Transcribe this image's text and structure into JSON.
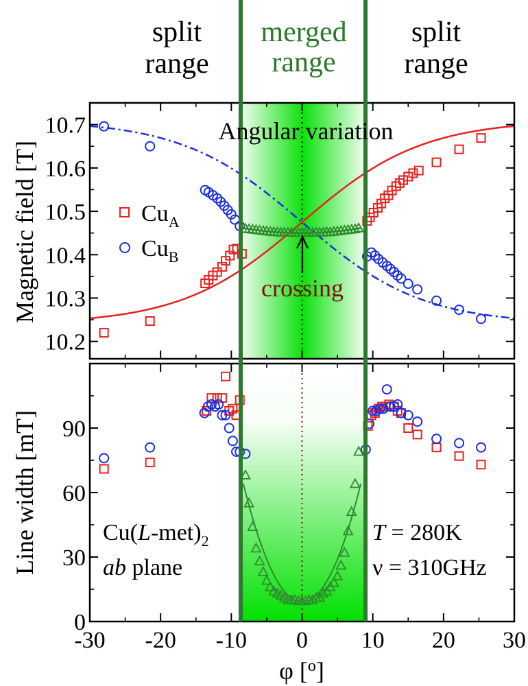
{
  "figure": {
    "range_labels": {
      "left": [
        "split",
        "range"
      ],
      "center": [
        "merged",
        "range"
      ],
      "right": [
        "split",
        "range"
      ]
    },
    "colors": {
      "cuA": "#e8201c",
      "cuB": "#1a2ee0",
      "merged": "#2e8b2e",
      "boundary": "#2d7a2d",
      "crossing": "#7a1010",
      "dotted_top": "#000000",
      "dotted_bottom": "#7a1010"
    }
  },
  "chart_data": [
    {
      "type": "scatter",
      "panel": "top",
      "title": "Angular variation",
      "xlabel": "",
      "ylabel": "Magnetic field [T]",
      "xlim": [
        -30,
        30
      ],
      "ylim": [
        10.16,
        10.75
      ],
      "yticks": [
        10.2,
        10.3,
        10.4,
        10.5,
        10.6,
        10.7
      ],
      "ytick_labels": [
        "10.2",
        "10.3",
        "10.4",
        "10.5",
        "10.6",
        "10.7"
      ],
      "annotation": "crossing",
      "legend": [
        {
          "base": "Cu",
          "sub": "A",
          "marker": "square",
          "color": "#e8201c"
        },
        {
          "base": "Cu",
          "sub": "B",
          "marker": "circle",
          "color": "#1a2ee0"
        }
      ],
      "series": [
        {
          "name": "CuA",
          "marker": "square",
          "color": "#e8201c",
          "x": [
            -28,
            -21.5,
            -13.7,
            -13.2,
            -12.6,
            -12,
            -11.3,
            -10.8,
            -10.2,
            -9.7,
            -9.2,
            -8.5,
            9.2,
            9.6,
            10.1,
            10.7,
            11.2,
            11.7,
            12.2,
            12.7,
            13.3,
            13.8,
            14.3,
            15,
            15.7,
            16.5,
            19,
            22.2,
            25.3
          ],
          "y": [
            10.22,
            10.247,
            10.334,
            10.342,
            10.352,
            10.36,
            10.372,
            10.386,
            10.398,
            10.412,
            10.414,
            10.402,
            10.478,
            10.486,
            10.497,
            10.508,
            10.518,
            10.53,
            10.537,
            10.548,
            10.558,
            10.565,
            10.572,
            10.58,
            10.588,
            10.594,
            10.613,
            10.643,
            10.669
          ]
        },
        {
          "name": "CuB",
          "marker": "circle",
          "color": "#1a2ee0",
          "x": [
            -28,
            -21.5,
            -13.7,
            -13.2,
            -12.6,
            -12,
            -11.5,
            -11,
            -10.5,
            -10,
            -9.5,
            -8.8,
            9.2,
            9.8,
            10.3,
            10.8,
            11.4,
            12,
            12.5,
            13,
            13.5,
            14,
            15,
            16.3,
            19,
            22.2,
            25.3
          ],
          "y": [
            10.696,
            10.65,
            10.549,
            10.544,
            10.537,
            10.53,
            10.522,
            10.513,
            10.503,
            10.493,
            10.481,
            10.466,
            10.396,
            10.405,
            10.398,
            10.39,
            10.382,
            10.374,
            10.367,
            10.36,
            10.352,
            10.345,
            10.333,
            10.32,
            10.294,
            10.273,
            10.252
          ]
        },
        {
          "name": "merged",
          "marker": "triangle",
          "color": "#2e8b2e",
          "x": [
            -8,
            -7.5,
            -7,
            -6.5,
            -6,
            -5.5,
            -5,
            -4.5,
            -4,
            -3.5,
            -3,
            -2.5,
            -2,
            -1.5,
            -1,
            -0.5,
            0,
            0.5,
            1,
            1.5,
            2,
            2.5,
            3,
            3.5,
            4,
            4.5,
            5,
            5.5,
            6,
            6.5,
            7,
            7.5,
            8
          ],
          "y": [
            10.46,
            10.459,
            10.458,
            10.457,
            10.456,
            10.455,
            10.454,
            10.453,
            10.452,
            10.452,
            10.451,
            10.451,
            10.451,
            10.451,
            10.45,
            10.45,
            10.45,
            10.45,
            10.45,
            10.451,
            10.451,
            10.451,
            10.451,
            10.452,
            10.452,
            10.453,
            10.454,
            10.455,
            10.456,
            10.457,
            10.458,
            10.459,
            10.461
          ]
        }
      ],
      "fit_curves": [
        {
          "name": "CuA fit",
          "style": "solid",
          "color": "#e8201c",
          "x_range": [
            -30,
            30
          ],
          "model": "10.475 + 0.235*tanh(phi/17)"
        },
        {
          "name": "CuB fit",
          "style": "dash-dot",
          "color": "#1a2ee0",
          "x_range": [
            -30,
            30
          ],
          "model": "10.475 - 0.235*tanh(phi/17)"
        },
        {
          "name": "merged fit",
          "style": "solid",
          "color": "#2e8b2e",
          "x_range": [
            -8.3,
            8.3
          ],
          "model": "10.450 + 0.15*(phi/30)^2"
        }
      ]
    },
    {
      "type": "scatter",
      "panel": "bottom",
      "title": "",
      "xlabel": "φ [o]",
      "ylabel": "Line width [mT]",
      "xlim": [
        -30,
        30
      ],
      "ylim": [
        0,
        120
      ],
      "yticks": [
        0,
        30,
        60,
        90
      ],
      "ytick_labels": [
        "0",
        "30",
        "60",
        "90"
      ],
      "xticks": [
        -30,
        -20,
        -10,
        0,
        10,
        20,
        30
      ],
      "xtick_labels": [
        "-30",
        "-20",
        "-10",
        "0",
        "10",
        "20",
        "30"
      ],
      "annotations_left": {
        "compound": "Cu(L-met)",
        "compound_sub": "2",
        "plane_italic": "ab",
        "plane": " plane"
      },
      "annotations_right": {
        "temperature": "T = 280K",
        "frequency": "ν = 310GHz"
      },
      "series": [
        {
          "name": "CuA",
          "marker": "square",
          "color": "#e8201c",
          "x": [
            -28,
            -21.5,
            -13.5,
            -12.8,
            -12,
            -11.3,
            -10.8,
            -10.3,
            -9.8,
            -9.3,
            -8.8,
            9.3,
            9.8,
            10.3,
            10.8,
            11.3,
            11.8,
            12.3,
            13,
            13.5,
            14,
            15,
            16.3,
            19,
            22.2,
            25.3
          ],
          "y": [
            71,
            74,
            98,
            104,
            104,
            104,
            114,
            98,
            99,
            96,
            103,
            91,
            96,
            97,
            99,
            100,
            100,
            101,
            100,
            98,
            97,
            90,
            87,
            81,
            77,
            73
          ]
        },
        {
          "name": "CuB",
          "marker": "circle",
          "color": "#1a2ee0",
          "x": [
            -28,
            -21.5,
            -13.8,
            -13.3,
            -12.8,
            -12.3,
            -11.8,
            -11.3,
            -10.8,
            -10.3,
            -9.8,
            -9.3,
            -8.8,
            -8.0,
            9.0,
            9.5,
            10,
            10.5,
            11,
            11.5,
            12,
            12.5,
            13,
            13.5,
            14,
            15,
            16.3,
            19,
            22.2,
            25.3
          ],
          "y": [
            76,
            81,
            97,
            100,
            101,
            100,
            101,
            96,
            96,
            90,
            84,
            79,
            79,
            78,
            80,
            92,
            98,
            98,
            99,
            99,
            108,
            100,
            100,
            101,
            97,
            96,
            93,
            85,
            83,
            81
          ]
        },
        {
          "name": "merged",
          "marker": "triangle",
          "color": "#2e8b2e",
          "x": [
            -8,
            -7.5,
            -7,
            -6.5,
            -6,
            -5.5,
            -5,
            -4.5,
            -4,
            -3.5,
            -3,
            -2.5,
            -2,
            -1.5,
            -1,
            -0.5,
            0,
            0.5,
            1,
            1.5,
            2,
            2.5,
            3,
            3.5,
            4,
            4.5,
            5,
            5.5,
            6,
            6.5,
            7,
            7.5,
            8
          ],
          "y": [
            68,
            55,
            44,
            34,
            28,
            23,
            19,
            16,
            14,
            13,
            12,
            11,
            10,
            10,
            10,
            9.5,
            9.5,
            9.5,
            10,
            10,
            11,
            11,
            13,
            14,
            16,
            18,
            21,
            26,
            32,
            42,
            51,
            64,
            79
          ]
        }
      ]
    }
  ]
}
